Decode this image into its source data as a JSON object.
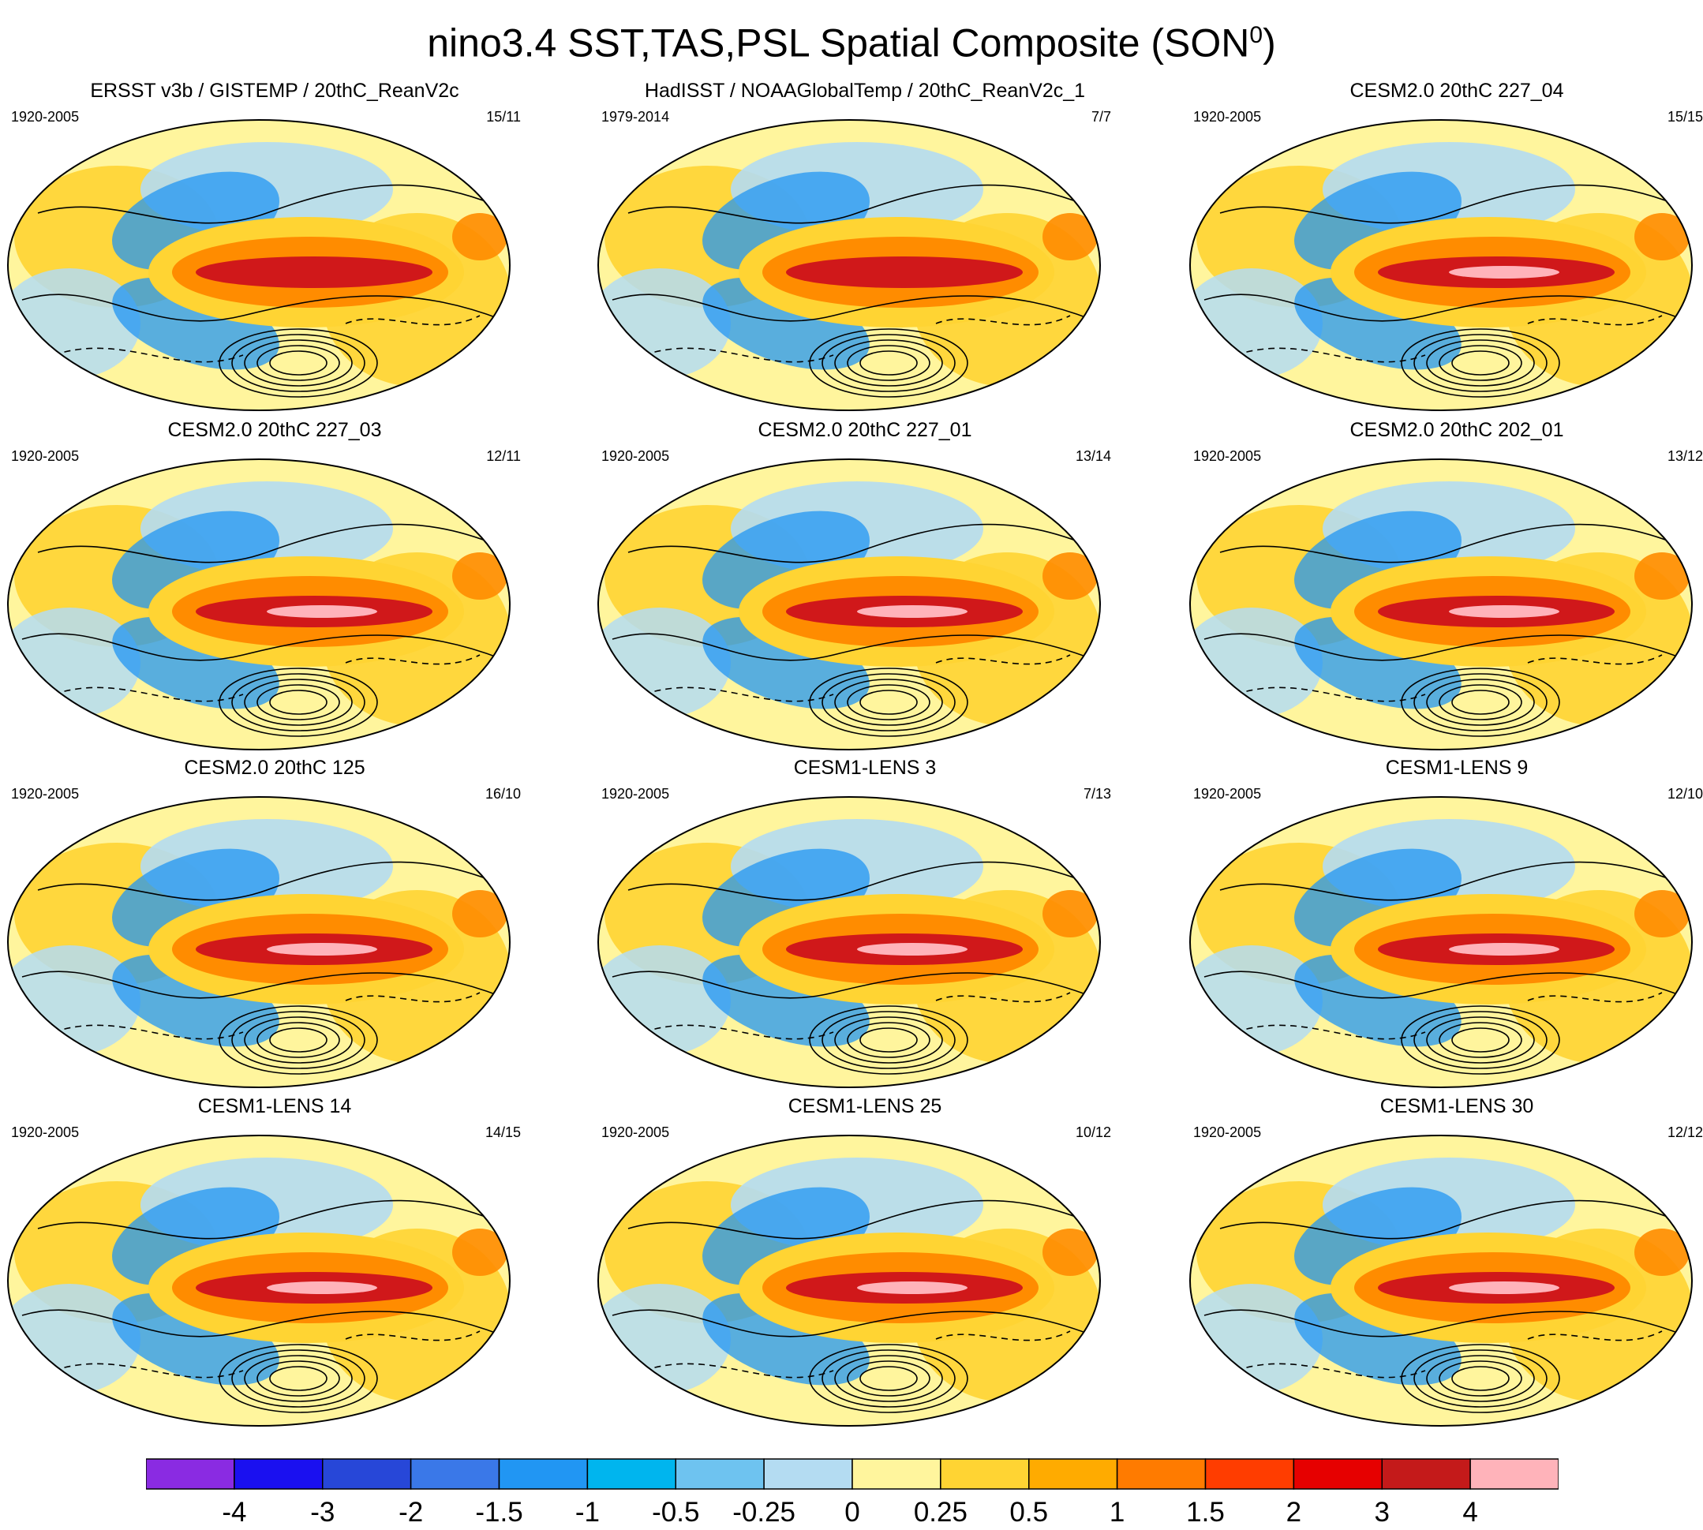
{
  "title": {
    "text": "nino3.4 SST,TAS,PSL Spatial Composite (SON",
    "superscript": "0",
    "closing": ")"
  },
  "panels": [
    {
      "title": "ERSST v3b / GISTEMP / 20thC_ReanV2c",
      "years": "1920-2005",
      "count": "15/11",
      "bold": false
    },
    {
      "title": "HadISST / NOAAGlobalTemp / 20thC_ReanV2c_1",
      "years": "1979-2014",
      "count": "7/7",
      "bold": false
    },
    {
      "title": "CESM2.0 20thC 227_04",
      "years": "1920-2005",
      "count": "15/15",
      "bold": false
    },
    {
      "title": "CESM2.0 20thC 227_03",
      "years": "1920-2005",
      "count": "12/11",
      "bold": false
    },
    {
      "title": "CESM2.0 20thC 227_01",
      "years": "1920-2005",
      "count": "13/14",
      "bold": false
    },
    {
      "title": "CESM2.0 20thC 202_01",
      "years": "1920-2005",
      "count": "13/12",
      "bold": false
    },
    {
      "title": "CESM2.0 20thC 125",
      "years": "1920-2005",
      "count": "16/10",
      "bold": false
    },
    {
      "title": "CESM1-LENS 3",
      "years": "1920-2005",
      "count": "7/13",
      "bold": false
    },
    {
      "title": "CESM1-LENS 9",
      "years": "1920-2005",
      "count": "12/10",
      "bold": false
    },
    {
      "title": "CESM1-LENS 14",
      "years": "1920-2005",
      "count": "14/15",
      "bold": false
    },
    {
      "title": "CESM1-LENS 25",
      "years": "1920-2005",
      "count": "10/12",
      "bold": false
    },
    {
      "title": "CESM1-LENS 30",
      "years": "1920-2005",
      "count": "12/12",
      "bold": false
    }
  ],
  "colorbar": {
    "colors": [
      "#8a2be2",
      "#1a10f0",
      "#2747d8",
      "#3a78e8",
      "#2196f3",
      "#00b5ee",
      "#6ec3f0",
      "#b4dcf2",
      "#fff59d",
      "#ffd433",
      "#ffab00",
      "#ff7b00",
      "#ff3d00",
      "#e60000",
      "#c41a1a",
      "#ffb3ba"
    ],
    "labels": [
      "-4",
      "-3",
      "-2",
      "-1.5",
      "-1",
      "-0.5",
      "-0.25",
      "0",
      "0.25",
      "0.5",
      "1",
      "1.5",
      "2",
      "3",
      "4"
    ]
  },
  "palette": {
    "warm_strong": "#d0181a",
    "warm": "#ff8c00",
    "warm_light": "#ffd433",
    "neutral": "#fff59d",
    "cool_light": "#b4dcf2",
    "cool": "#2196f3",
    "peak": "#ffb3ba",
    "contour": "#000000"
  }
}
